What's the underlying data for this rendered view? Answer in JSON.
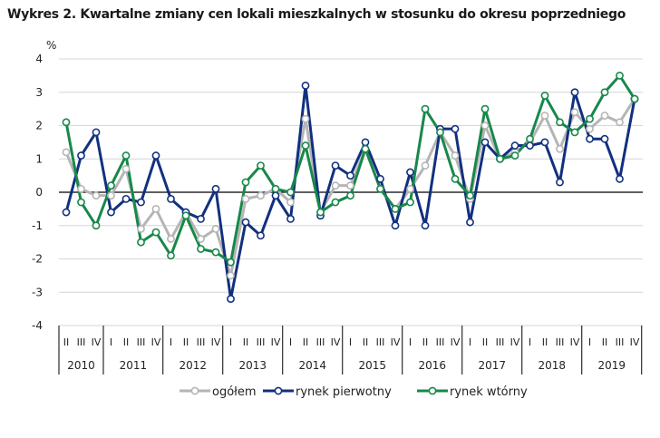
{
  "chart_data": {
    "type": "line",
    "title": "Wykres 2. Kwartalne zmiany cen lokali mieszkalnych w stosunku do okresu poprzedniego",
    "ylabel": "%",
    "ylim": [
      -4,
      4
    ],
    "yticks": [
      4,
      3,
      2,
      1,
      0,
      -1,
      -2,
      -3,
      -4
    ],
    "grid": true,
    "legend": "bottom",
    "years": [
      {
        "label": "2010",
        "quarters": [
          "II",
          "III",
          "IV"
        ]
      },
      {
        "label": "2011",
        "quarters": [
          "I",
          "II",
          "III",
          "IV"
        ]
      },
      {
        "label": "2012",
        "quarters": [
          "I",
          "II",
          "III",
          "IV"
        ]
      },
      {
        "label": "2013",
        "quarters": [
          "I",
          "II",
          "III",
          "IV"
        ]
      },
      {
        "label": "2014",
        "quarters": [
          "I",
          "II",
          "III",
          "IV"
        ]
      },
      {
        "label": "2015",
        "quarters": [
          "I",
          "II",
          "III",
          "IV"
        ]
      },
      {
        "label": "2016",
        "quarters": [
          "I",
          "II",
          "III",
          "IV"
        ]
      },
      {
        "label": "2017",
        "quarters": [
          "I",
          "II",
          "III",
          "IV"
        ]
      },
      {
        "label": "2018",
        "quarters": [
          "I",
          "II",
          "III",
          "IV"
        ]
      },
      {
        "label": "2019",
        "quarters": [
          "I",
          "II",
          "III",
          "IV"
        ]
      }
    ],
    "series": [
      {
        "name": "ogółem",
        "color": "#b5b5b5",
        "values": [
          1.2,
          0.1,
          -0.1,
          -0.1,
          0.7,
          -1.1,
          -0.5,
          -1.4,
          -0.6,
          -1.4,
          -1.1,
          -2.5,
          -0.2,
          -0.1,
          0.1,
          -0.3,
          2.2,
          -0.6,
          0.2,
          0.2,
          1.3,
          0.1,
          -0.5,
          0.1,
          0.8,
          1.8,
          1.1,
          -0.2,
          2.0,
          1.0,
          1.2,
          1.5,
          2.3,
          1.3,
          2.4,
          1.9,
          2.3,
          2.1,
          2.8
        ]
      },
      {
        "name": "rynek pierwotny",
        "color": "#12307f",
        "values": [
          -0.6,
          1.1,
          1.8,
          -0.6,
          -0.2,
          -0.3,
          1.1,
          -0.2,
          -0.6,
          -0.8,
          0.1,
          -3.2,
          -0.9,
          -1.3,
          -0.1,
          -0.8,
          3.2,
          -0.7,
          0.8,
          0.5,
          1.5,
          0.4,
          -1.0,
          0.6,
          -1.0,
          1.9,
          1.9,
          -0.9,
          1.5,
          1.0,
          1.4,
          1.4,
          1.5,
          0.3,
          3.0,
          1.6,
          1.6,
          0.4,
          2.8
        ]
      },
      {
        "name": "rynek wtórny",
        "color": "#17884a",
        "values": [
          2.1,
          -0.3,
          -1.0,
          0.2,
          1.1,
          -1.5,
          -1.2,
          -1.9,
          -0.7,
          -1.7,
          -1.8,
          -2.1,
          0.3,
          0.8,
          0.1,
          0.0,
          1.4,
          -0.6,
          -0.3,
          -0.1,
          1.3,
          0.1,
          -0.5,
          -0.3,
          2.5,
          1.8,
          0.4,
          -0.1,
          2.5,
          1.0,
          1.1,
          1.6,
          2.9,
          2.1,
          1.8,
          2.2,
          3.0,
          3.5,
          2.8
        ]
      }
    ]
  }
}
